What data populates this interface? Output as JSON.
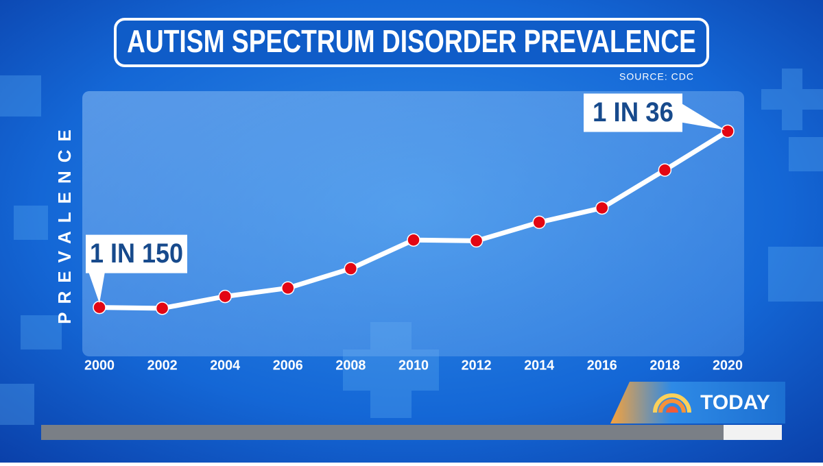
{
  "chart_data": {
    "type": "line",
    "title": "AUTISM SPECTRUM DISORDER PREVALENCE",
    "source": "SOURCE: CDC",
    "y_label": "PREVALENCE",
    "x": [
      2000,
      2002,
      2004,
      2006,
      2008,
      2010,
      2012,
      2014,
      2016,
      2018,
      2020
    ],
    "values": [
      6.7,
      6.6,
      8.0,
      9.0,
      11.3,
      14.7,
      14.6,
      16.8,
      18.5,
      23.0,
      27.6
    ],
    "color": "#e30613",
    "line_color": "#ffffff",
    "xlim": [
      2000,
      2020
    ],
    "xticks": [
      2000,
      2002,
      2004,
      2006,
      2008,
      2010,
      2012,
      2014,
      2016,
      2018,
      2020
    ],
    "ylim": [
      0,
      30
    ],
    "annotations": [
      {
        "x": 2000,
        "text": "1 IN 150"
      },
      {
        "x": 2020,
        "text": "1 IN 36"
      }
    ]
  },
  "brand": "TODAY"
}
